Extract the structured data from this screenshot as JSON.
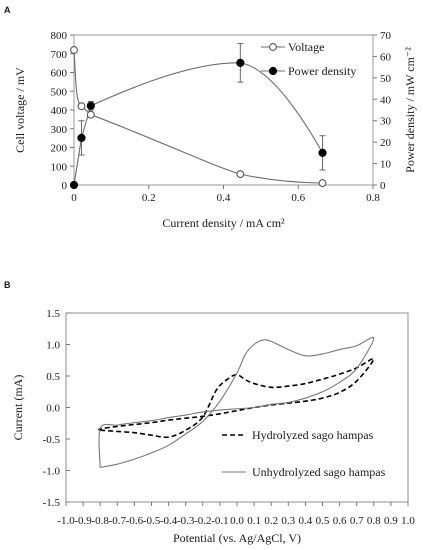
{
  "panels": {
    "a_label": "A",
    "b_label": "B"
  },
  "chart_data": [
    {
      "type": "line",
      "xlabel": "Current density / mA cm²",
      "ylabel": "Cell voltage / mV",
      "y2label": "Power density / mW cm⁻²",
      "xlim": [
        0,
        0.8
      ],
      "ylim": [
        0,
        800
      ],
      "y2lim": [
        0,
        70
      ],
      "xticks": [
        "0",
        "0.2",
        "0.4",
        "0.6",
        "0.8"
      ],
      "yticks": [
        "0",
        "100",
        "200",
        "300",
        "400",
        "500",
        "600",
        "700",
        "800"
      ],
      "y2ticks": [
        "0",
        "10",
        "20",
        "30",
        "40",
        "50",
        "60",
        "70"
      ],
      "grid": false,
      "legend_position": "top-right",
      "series": [
        {
          "name": "Voltage",
          "axis": "left",
          "marker": "open-circle",
          "color": "#555555",
          "x": [
            0.0,
            0.02,
            0.045,
            0.445,
            0.665
          ],
          "y": [
            720,
            420,
            375,
            58,
            10
          ]
        },
        {
          "name": "Power density",
          "axis": "right",
          "marker": "filled-circle",
          "color": "#000000",
          "x": [
            0.0,
            0.02,
            0.045,
            0.445,
            0.665
          ],
          "y": [
            0,
            22,
            37,
            57,
            15
          ],
          "error": [
            0,
            8,
            2,
            9,
            8
          ]
        }
      ]
    },
    {
      "type": "line",
      "xlabel": "Potential (vs. Ag/AgCl, V)",
      "ylabel": "Current (mA)",
      "xlim": [
        -1.0,
        1.0
      ],
      "ylim": [
        -1.5,
        1.5
      ],
      "xticks": [
        "-1.0",
        "-0.9",
        "-0.8",
        "-0.7",
        "-0.6",
        "-0.5",
        "-0.4",
        "-0.3",
        "-0.2",
        "-0.1",
        "0.0",
        "0.1",
        "0.2",
        "0.3",
        "0.4",
        "0.5",
        "0.6",
        "0.7",
        "0.8",
        "0.9",
        "1.0"
      ],
      "yticks": [
        "1.5",
        "1.0",
        "0.5",
        "0.0",
        "-0.5",
        "-1.0",
        "-1.5"
      ],
      "grid": false,
      "legend_position": "bottom-right",
      "series": [
        {
          "name": "Hydrolyzed sago hampas",
          "style": "dashed",
          "color": "#000000",
          "x": [
            -0.8,
            -0.7,
            -0.6,
            -0.5,
            -0.4,
            -0.3,
            -0.2,
            -0.12,
            -0.05,
            0.0,
            0.05,
            0.1,
            0.2,
            0.3,
            0.4,
            0.5,
            0.6,
            0.7,
            0.8,
            0.7,
            0.6,
            0.5,
            0.4,
            0.3,
            0.2,
            0.1,
            0.0,
            -0.1,
            -0.2,
            -0.3,
            -0.4,
            -0.5,
            -0.6,
            -0.7,
            -0.8
          ],
          "y": [
            -0.36,
            -0.38,
            -0.4,
            -0.44,
            -0.47,
            -0.36,
            -0.15,
            0.28,
            0.46,
            0.52,
            0.44,
            0.38,
            0.32,
            0.34,
            0.38,
            0.45,
            0.53,
            0.63,
            0.77,
            0.42,
            0.24,
            0.15,
            0.1,
            0.07,
            0.04,
            0.0,
            -0.05,
            -0.1,
            -0.14,
            -0.17,
            -0.2,
            -0.24,
            -0.27,
            -0.3,
            -0.34
          ]
        },
        {
          "name": "Unhydrolyzed sago hampas",
          "style": "solid",
          "color": "#666666",
          "x": [
            -0.8,
            -0.7,
            -0.6,
            -0.5,
            -0.4,
            -0.3,
            -0.2,
            -0.1,
            0.0,
            0.05,
            0.1,
            0.15,
            0.2,
            0.3,
            0.4,
            0.5,
            0.6,
            0.7,
            0.8,
            0.7,
            0.6,
            0.5,
            0.4,
            0.3,
            0.2,
            0.1,
            0.0,
            -0.1,
            -0.2,
            -0.3,
            -0.4,
            -0.5,
            -0.6,
            -0.7,
            -0.8
          ],
          "y": [
            -0.95,
            -0.9,
            -0.82,
            -0.72,
            -0.6,
            -0.42,
            -0.22,
            0.1,
            0.55,
            0.85,
            1.0,
            1.07,
            1.05,
            0.92,
            0.82,
            0.85,
            0.92,
            0.98,
            1.1,
            0.62,
            0.4,
            0.25,
            0.15,
            0.08,
            0.05,
            0.0,
            -0.02,
            -0.04,
            -0.07,
            -0.12,
            -0.16,
            -0.21,
            -0.24,
            -0.28,
            -0.33
          ]
        }
      ]
    }
  ]
}
